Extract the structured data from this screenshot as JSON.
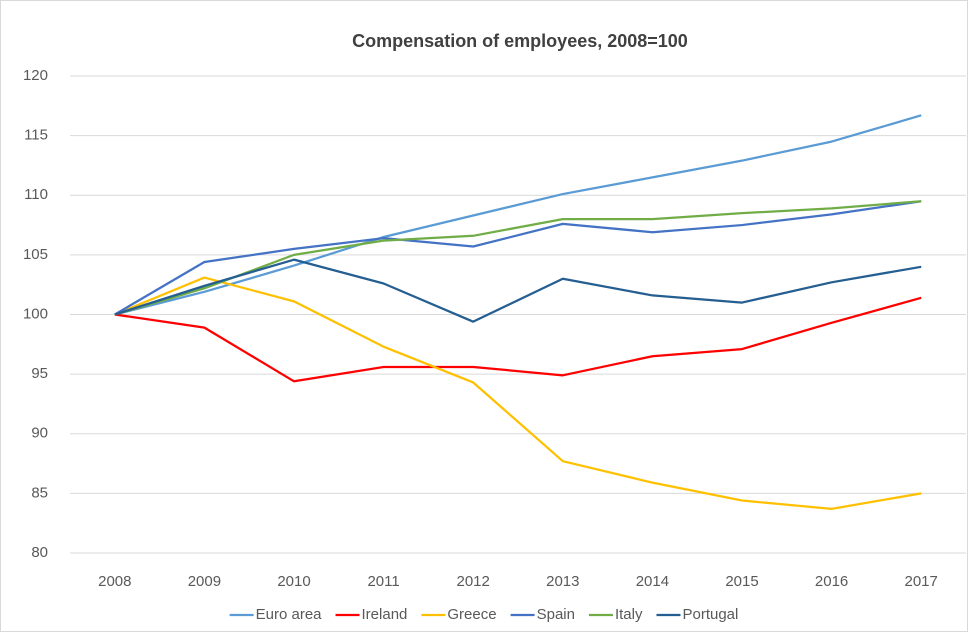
{
  "chart_data": {
    "type": "line",
    "title": "Compensation of employees, 2008=100",
    "categories": [
      "2008",
      "2009",
      "2010",
      "2011",
      "2012",
      "2013",
      "2014",
      "2015",
      "2016",
      "2017"
    ],
    "series": [
      {
        "name": "Euro area",
        "color": "#5b9bd5",
        "values": [
          100,
          101.9,
          104.1,
          106.5,
          108.3,
          110.1,
          111.5,
          112.9,
          114.5,
          116.7
        ]
      },
      {
        "name": "Ireland",
        "color": "#ff0000",
        "values": [
          100,
          98.9,
          94.4,
          95.6,
          95.6,
          94.9,
          96.5,
          97.1,
          99.3,
          101.4
        ]
      },
      {
        "name": "Greece",
        "color": "#ffc000",
        "values": [
          100,
          103.1,
          101.1,
          97.3,
          94.3,
          87.7,
          85.9,
          84.4,
          83.7,
          85.0
        ]
      },
      {
        "name": "Spain",
        "color": "#4472c4",
        "values": [
          100,
          104.4,
          105.5,
          106.4,
          105.7,
          107.6,
          106.9,
          107.5,
          108.4,
          109.5
        ]
      },
      {
        "name": "Italy",
        "color": "#70ad47",
        "values": [
          100,
          102.2,
          105.0,
          106.2,
          106.6,
          108.0,
          108.0,
          108.5,
          108.9,
          109.5
        ]
      },
      {
        "name": "Portugal",
        "color": "#255e91",
        "values": [
          100,
          102.4,
          104.6,
          102.6,
          99.4,
          103.0,
          101.6,
          101.0,
          102.7,
          104.0
        ]
      }
    ],
    "ylim": [
      80,
      120
    ],
    "yticks": [
      80,
      85,
      90,
      95,
      100,
      105,
      110,
      115,
      120
    ],
    "grid": true,
    "legend": "bottom"
  }
}
